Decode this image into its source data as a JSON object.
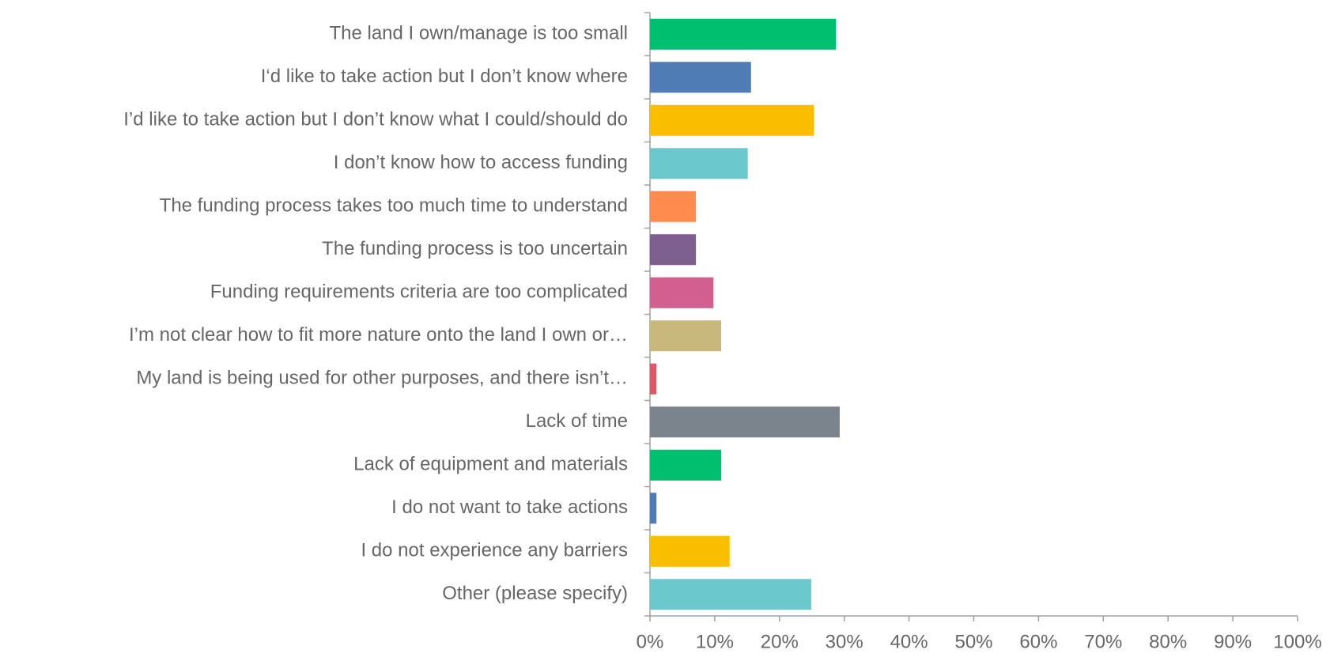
{
  "chart_data": {
    "type": "hbar",
    "categories": [
      "The land I own/manage is too small",
      "I‘d like to take action but I don’t know where",
      "I’d like to take action but I don’t know what I could/should do",
      "I don’t know how to access funding",
      "The funding process takes too much time to understand",
      "The funding process is too uncertain",
      "Funding requirements criteria are too complicated",
      "I’m not clear how to fit more nature onto the land I own or…",
      "My land is being used for other purposes, and there isn’t…",
      "Lack of time",
      "Lack of equipment and materials",
      "I do not want to take actions",
      "I do not experience any barriers",
      "Other (please specify)"
    ],
    "values": [
      28.7,
      15.6,
      25.3,
      15.1,
      7.1,
      7.1,
      9.8,
      11.0,
      1.0,
      29.3,
      11.0,
      1.0,
      12.3,
      24.9
    ],
    "colors": [
      "#00bf6f",
      "#507cb6",
      "#f9be00",
      "#6bc8cd",
      "#ff8b4f",
      "#7f5f90",
      "#d25f90",
      "#c9b87b",
      "#e05666",
      "#7b848c",
      "#00bf6f",
      "#507cb6",
      "#f9be00",
      "#6bc8cd"
    ],
    "xlim": [
      0,
      100
    ],
    "xticks": [
      {
        "value": 0,
        "label": "0%"
      },
      {
        "value": 10,
        "label": "10%"
      },
      {
        "value": 20,
        "label": "20%"
      },
      {
        "value": 30,
        "label": "30%"
      },
      {
        "value": 40,
        "label": "40%"
      },
      {
        "value": 50,
        "label": "50%"
      },
      {
        "value": 60,
        "label": "60%"
      },
      {
        "value": 70,
        "label": "70%"
      },
      {
        "value": 80,
        "label": "80%"
      },
      {
        "value": 90,
        "label": "90%"
      },
      {
        "value": 100,
        "label": "100%"
      }
    ],
    "grid": false
  }
}
